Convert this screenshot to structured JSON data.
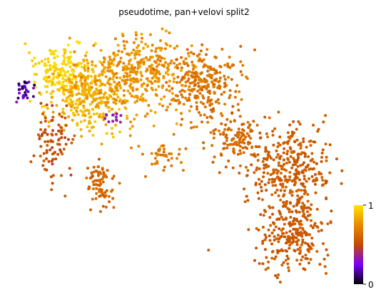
{
  "chart_data": {
    "type": "scatter",
    "title": "pseudotime, pan+velovi split2",
    "xlabel": "",
    "ylabel": "",
    "axes_visible": false,
    "grid": false,
    "colormap": {
      "name": "gnuplot",
      "stops": [
        "#000000",
        "#7a00ff",
        "#c24a00",
        "#e88a00",
        "#ffe400"
      ],
      "ticks": [
        "0",
        "1"
      ],
      "range": [
        0,
        1
      ],
      "position": "right"
    },
    "clusters": [
      {
        "cx": 0.12,
        "cy": 0.16,
        "sx": 0.045,
        "sy": 0.055,
        "n": 170,
        "v": [
          0.92,
          1.0
        ]
      },
      {
        "cx": 0.22,
        "cy": 0.27,
        "sx": 0.07,
        "sy": 0.07,
        "n": 300,
        "v": [
          0.78,
          0.93
        ]
      },
      {
        "cx": 0.38,
        "cy": 0.17,
        "sx": 0.08,
        "sy": 0.08,
        "n": 380,
        "v": [
          0.7,
          0.85
        ]
      },
      {
        "cx": 0.58,
        "cy": 0.22,
        "sx": 0.06,
        "sy": 0.07,
        "n": 260,
        "v": [
          0.6,
          0.72
        ]
      },
      {
        "cx": 0.68,
        "cy": 0.45,
        "sx": 0.04,
        "sy": 0.05,
        "n": 120,
        "v": [
          0.56,
          0.66
        ]
      },
      {
        "cx": 0.86,
        "cy": 0.58,
        "sx": 0.065,
        "sy": 0.09,
        "n": 340,
        "v": [
          0.52,
          0.62
        ]
      },
      {
        "cx": 0.86,
        "cy": 0.86,
        "sx": 0.055,
        "sy": 0.07,
        "n": 230,
        "v": [
          0.52,
          0.6
        ]
      },
      {
        "cx": 0.44,
        "cy": 0.52,
        "sx": 0.03,
        "sy": 0.03,
        "n": 40,
        "v": [
          0.62,
          0.74
        ]
      },
      {
        "cx": 0.25,
        "cy": 0.63,
        "sx": 0.02,
        "sy": 0.06,
        "n": 80,
        "v": [
          0.56,
          0.66
        ]
      },
      {
        "cx": 0.11,
        "cy": 0.46,
        "sx": 0.03,
        "sy": 0.08,
        "n": 90,
        "v": [
          0.46,
          0.6
        ]
      },
      {
        "cx": 0.01,
        "cy": 0.24,
        "sx": 0.012,
        "sy": 0.025,
        "n": 30,
        "v": [
          0.0,
          0.32
        ]
      },
      {
        "cx": 0.29,
        "cy": 0.36,
        "sx": 0.015,
        "sy": 0.015,
        "n": 12,
        "v": [
          0.28,
          0.38
        ]
      }
    ]
  }
}
